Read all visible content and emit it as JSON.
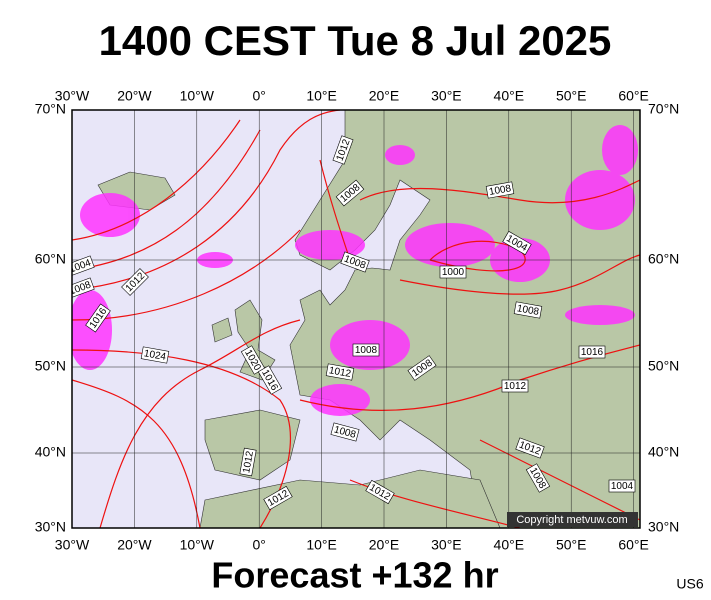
{
  "header": {
    "title": "1400 CEST Tue 8 Jul 2025"
  },
  "map": {
    "lon_labels": [
      "30°W",
      "20°W",
      "10°W",
      "0°",
      "10°E",
      "20°E",
      "30°E",
      "40°E",
      "50°E",
      "60°E"
    ],
    "lat_labels": [
      "70°N",
      "60°N",
      "50°N",
      "40°N",
      "30°N"
    ],
    "isobar_labels": [
      "1012",
      "1008",
      "1008",
      "1000",
      "1004",
      "1008",
      "1004",
      "1008",
      "1012",
      "1016",
      "1024",
      "1020",
      "1016",
      "1012",
      "1008",
      "1008",
      "1008",
      "1008",
      "1016",
      "1012",
      "1012",
      "1008",
      "1004",
      "1012",
      "1012",
      "1012"
    ],
    "copyright": "Copyright metvuw.com"
  },
  "footer": {
    "forecast": "Forecast +132 hr",
    "code": "US6"
  }
}
